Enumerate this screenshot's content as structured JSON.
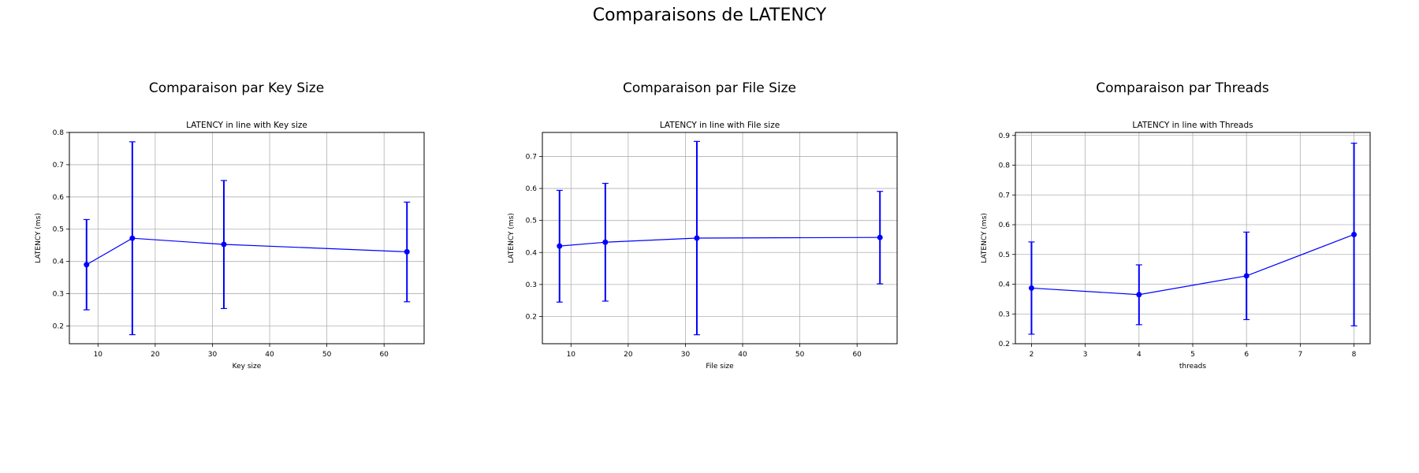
{
  "suptitle": "Comparaisons de LATENCY",
  "panels": [
    {
      "title": "Comparaison par Key Size"
    },
    {
      "title": "Comparaison par File Size"
    },
    {
      "title": "Comparaison par Threads"
    }
  ],
  "chart_data": [
    {
      "type": "line",
      "title": "LATENCY in line with Key size",
      "xlabel": "Key size",
      "ylabel": "LATENCY (ms)",
      "xlim": [
        5,
        67
      ],
      "ylim": [
        0.145,
        0.8
      ],
      "xticks": [
        10,
        20,
        30,
        40,
        50,
        60
      ],
      "yticks": [
        0.2,
        0.3,
        0.4,
        0.5,
        0.6,
        0.7,
        0.8
      ],
      "grid": true,
      "color": "#0000ff",
      "x": [
        8,
        16,
        32,
        64
      ],
      "y": [
        0.39,
        0.472,
        0.453,
        0.43
      ],
      "yerr_low": [
        0.25,
        0.173,
        0.254,
        0.275
      ],
      "yerr_high": [
        0.53,
        0.771,
        0.651,
        0.584
      ]
    },
    {
      "type": "line",
      "title": "LATENCY in line with File size",
      "xlabel": "File size",
      "ylabel": "LATENCY (ms)",
      "xlim": [
        5,
        67
      ],
      "ylim": [
        0.115,
        0.775
      ],
      "xticks": [
        10,
        20,
        30,
        40,
        50,
        60
      ],
      "yticks": [
        0.2,
        0.3,
        0.4,
        0.5,
        0.6,
        0.7
      ],
      "grid": true,
      "color": "#0000ff",
      "x": [
        8,
        16,
        32,
        64
      ],
      "y": [
        0.42,
        0.432,
        0.445,
        0.447
      ],
      "yerr_low": [
        0.245,
        0.248,
        0.143,
        0.302
      ],
      "yerr_high": [
        0.594,
        0.616,
        0.747,
        0.591
      ]
    },
    {
      "type": "line",
      "title": "LATENCY in line with Threads",
      "xlabel": "threads",
      "ylabel": "LATENCY (ms)",
      "xlim": [
        1.7,
        8.3
      ],
      "ylim": [
        0.2,
        0.91
      ],
      "xticks": [
        2,
        3,
        4,
        5,
        6,
        7,
        8
      ],
      "yticks": [
        0.2,
        0.3,
        0.4,
        0.5,
        0.6,
        0.7,
        0.8,
        0.9
      ],
      "grid": true,
      "color": "#0000ff",
      "x": [
        2,
        4,
        6,
        8
      ],
      "y": [
        0.387,
        0.365,
        0.428,
        0.567
      ],
      "yerr_low": [
        0.232,
        0.264,
        0.281,
        0.26
      ],
      "yerr_high": [
        0.542,
        0.465,
        0.575,
        0.874
      ]
    }
  ]
}
